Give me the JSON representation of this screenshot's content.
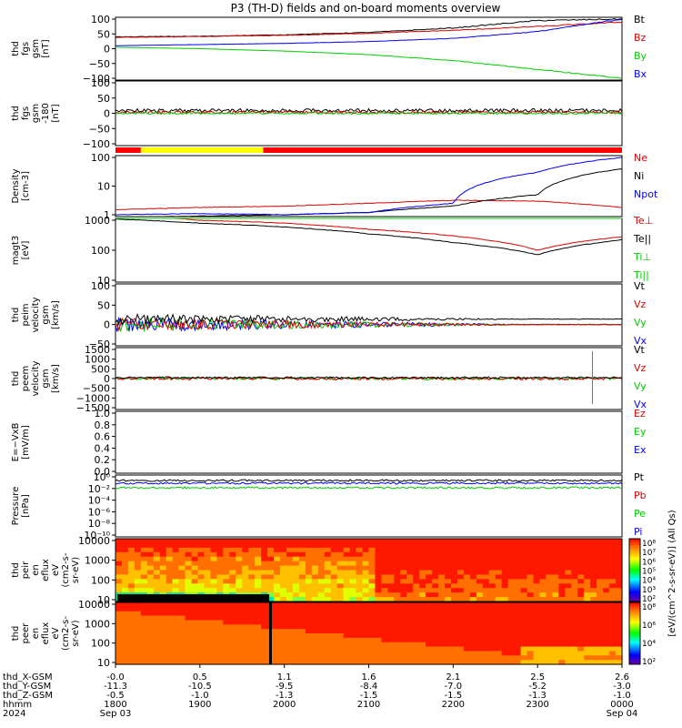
{
  "title": "P3 (TH-D) fields and on-board moments overview",
  "colors": {
    "black": "#000000",
    "red": "#dd0000",
    "green": "#00cc00",
    "blue": "#0000ff",
    "yellow": "#ffff00",
    "flag_red": "#ff0000"
  },
  "time_axis": {
    "rows": [
      {
        "label": "thd_X-GSM",
        "values": [
          "-0.0",
          "0.5",
          "1.1",
          "1.6",
          "2.1",
          "2.5",
          "2.6"
        ]
      },
      {
        "label": "thd_Y-GSM",
        "values": [
          "-11.3",
          "-10.5",
          "-9.5",
          "-8.4",
          "-7.0",
          "-5.2",
          "-3.0"
        ]
      },
      {
        "label": "thd_Z-GSM",
        "values": [
          "-0.5",
          "-1.0",
          "-1.3",
          "-1.5",
          "-1.5",
          "-1.3",
          "-1.0"
        ]
      },
      {
        "label": "hhmm",
        "values": [
          "1800",
          "1900",
          "2000",
          "2100",
          "2200",
          "2300",
          "0000"
        ]
      },
      {
        "label": "2024",
        "values": [
          "Sep 03",
          "",
          "",
          "",
          "",
          "",
          "Sep 04"
        ]
      }
    ],
    "hours": [
      0,
      1,
      2,
      3,
      4,
      5,
      6
    ]
  },
  "colorbar_label": "[eV/(cm^2-s-sr-eV)] (All Qs)",
  "panels": [
    {
      "id": "fgs",
      "ylabel": [
        "thd",
        "fgs",
        "gsm",
        "[nT]"
      ],
      "ticks": [
        "100",
        "50",
        "0",
        "−50",
        "−100"
      ],
      "legend": [
        {
          "t": "Bt",
          "c": "black"
        },
        {
          "t": "Bz",
          "c": "red"
        },
        {
          "t": "By",
          "c": "green"
        },
        {
          "t": "Bx",
          "c": "blue"
        }
      ]
    },
    {
      "id": "fgs_dsl",
      "ylabel": [
        "thd",
        "fgs",
        "gsm",
        "-180",
        "[nT]"
      ],
      "ticks": [
        "100",
        "50",
        "0",
        "−50",
        "−100"
      ],
      "legend": []
    },
    {
      "id": "density",
      "ylabel": [
        "Density",
        "[cm-3]"
      ],
      "ticks": [
        "100",
        "10",
        "1"
      ],
      "legend": [
        {
          "t": "Ne",
          "c": "red"
        },
        {
          "t": "Ni",
          "c": "black"
        },
        {
          "t": "Npot",
          "c": "blue"
        }
      ]
    },
    {
      "id": "temp",
      "ylabel": [
        "magt3",
        "[eV]"
      ],
      "ticks": [
        "1000",
        "100",
        "10"
      ],
      "legend": [
        {
          "t": "Te⊥",
          "c": "red"
        },
        {
          "t": "Te||",
          "c": "black"
        },
        {
          "t": "Ti⊥",
          "c": "green"
        },
        {
          "t": "Ti||",
          "c": "green"
        }
      ]
    },
    {
      "id": "peim",
      "ylabel": [
        "thd",
        "peim",
        "velocity",
        "gsm",
        "[km/s]"
      ],
      "ticks": [
        "100",
        "50",
        "0",
        "−50"
      ],
      "legend": [
        {
          "t": "Vt",
          "c": "black"
        },
        {
          "t": "Vz",
          "c": "red"
        },
        {
          "t": "Vy",
          "c": "green"
        },
        {
          "t": "Vx",
          "c": "blue"
        }
      ]
    },
    {
      "id": "peem",
      "ylabel": [
        "thd",
        "peem",
        "velocity",
        "gsm",
        "[km/s]"
      ],
      "ticks": [
        "1500",
        "1000",
        "500",
        "0",
        "−500",
        "−1000",
        "−1500"
      ],
      "legend": [
        {
          "t": "Vt",
          "c": "black"
        },
        {
          "t": "Vz",
          "c": "red"
        },
        {
          "t": "Vy",
          "c": "green"
        },
        {
          "t": "Vx",
          "c": "blue"
        }
      ]
    },
    {
      "id": "efield",
      "ylabel": [
        "E=−VxB",
        "[mV/m]"
      ],
      "ticks": [
        "1.0",
        "0.8",
        "0.6",
        "0.4",
        "0.2",
        "0.0"
      ],
      "legend": [
        {
          "t": "Ez",
          "c": "red"
        },
        {
          "t": "Ey",
          "c": "green"
        },
        {
          "t": "Ex",
          "c": "blue"
        }
      ]
    },
    {
      "id": "pressure",
      "ylabel": [
        "Pressure",
        "[nPa]"
      ],
      "ticks": [
        "10⁰",
        "10⁻²",
        "10⁻⁴",
        "10⁻⁶",
        "10⁻⁸",
        "10⁻¹⁰"
      ],
      "legend": [
        {
          "t": "Pt",
          "c": "black"
        },
        {
          "t": "Pb",
          "c": "red"
        },
        {
          "t": "Pe",
          "c": "green"
        },
        {
          "t": "Pi",
          "c": "blue"
        }
      ]
    },
    {
      "id": "peir",
      "ylabel": [
        "thd",
        "peir",
        "en",
        "eflux",
        "eV",
        "(cm2-s-",
        "sr-eV)"
      ],
      "ticks": [
        "10000",
        "1000",
        "100",
        "10"
      ],
      "legend": [],
      "cbar": [
        "10⁸",
        "10⁷",
        "10⁶",
        "10⁵",
        "10⁴",
        "10³",
        "10²"
      ]
    },
    {
      "id": "peer",
      "ylabel": [
        "thd",
        "peer",
        "en",
        "eflux",
        "eV",
        "(cm2-s-",
        "sr-eV)"
      ],
      "ticks": [
        "10000",
        "1000",
        "100",
        "10"
      ],
      "legend": [],
      "cbar": [
        "10⁸",
        "10⁶",
        "10⁴",
        "10²"
      ]
    }
  ],
  "chart_data": {
    "type": "line",
    "title": "P3 (TH-D) fields and on-board moments overview",
    "x_unit": "hours after 2024-09-03 18:00 UT",
    "xlim": [
      0,
      6
    ],
    "series": [
      {
        "name": "Bt",
        "panel": "fgs",
        "x": [
          0,
          1,
          2,
          3,
          4,
          5,
          6
        ],
        "values": [
          40,
          42,
          47,
          55,
          70,
          95,
          100
        ]
      },
      {
        "name": "Bz",
        "panel": "fgs",
        "x": [
          0,
          1,
          2,
          3,
          4,
          5,
          6
        ],
        "values": [
          38,
          41,
          45,
          52,
          62,
          75,
          90
        ]
      },
      {
        "name": "By",
        "panel": "fgs",
        "x": [
          0,
          1,
          2,
          3,
          4,
          5,
          6
        ],
        "values": [
          5,
          0,
          -8,
          -20,
          -40,
          -70,
          -100
        ]
      },
      {
        "name": "Bx",
        "panel": "fgs",
        "x": [
          0,
          1,
          2,
          3,
          4,
          5,
          6
        ],
        "values": [
          10,
          14,
          18,
          24,
          35,
          58,
          100
        ]
      },
      {
        "name": "Ne",
        "panel": "density",
        "x": [
          0,
          1,
          2,
          3,
          4,
          5,
          6
        ],
        "values": [
          1.5,
          1.8,
          2.0,
          2.5,
          3.2,
          3.0,
          1.8
        ]
      },
      {
        "name": "Ni",
        "panel": "density",
        "x": [
          0,
          1,
          2,
          3,
          4,
          5,
          6
        ],
        "values": [
          0.8,
          0.9,
          1.0,
          1.2,
          2.0,
          5.0,
          40
        ]
      },
      {
        "name": "Npot",
        "panel": "density",
        "x": [
          0,
          1,
          2,
          3,
          4,
          5,
          6
        ],
        "values": [
          1.0,
          1.1,
          1.0,
          1.2,
          2.5,
          30,
          100
        ]
      },
      {
        "name": "Te⊥",
        "panel": "temp",
        "x": [
          0,
          1,
          2,
          3,
          4,
          5,
          6
        ],
        "values": [
          1500,
          1000,
          800,
          500,
          300,
          100,
          280
        ]
      },
      {
        "name": "Te||",
        "panel": "temp",
        "x": [
          0,
          1,
          2,
          3,
          4,
          5,
          6
        ],
        "values": [
          1100,
          800,
          600,
          350,
          180,
          70,
          220
        ]
      },
      {
        "name": "Ti⊥",
        "panel": "temp",
        "x": [
          0,
          1,
          2,
          3,
          4,
          5,
          6
        ],
        "values": [
          3000,
          2600,
          2000,
          1800,
          1700,
          1500,
          1300
        ]
      },
      {
        "name": "Ti||",
        "panel": "temp",
        "x": [
          0,
          1,
          2,
          3,
          4,
          5,
          6
        ],
        "values": [
          4000,
          3800,
          3600,
          3400,
          3000,
          1800,
          1500
        ]
      }
    ]
  }
}
